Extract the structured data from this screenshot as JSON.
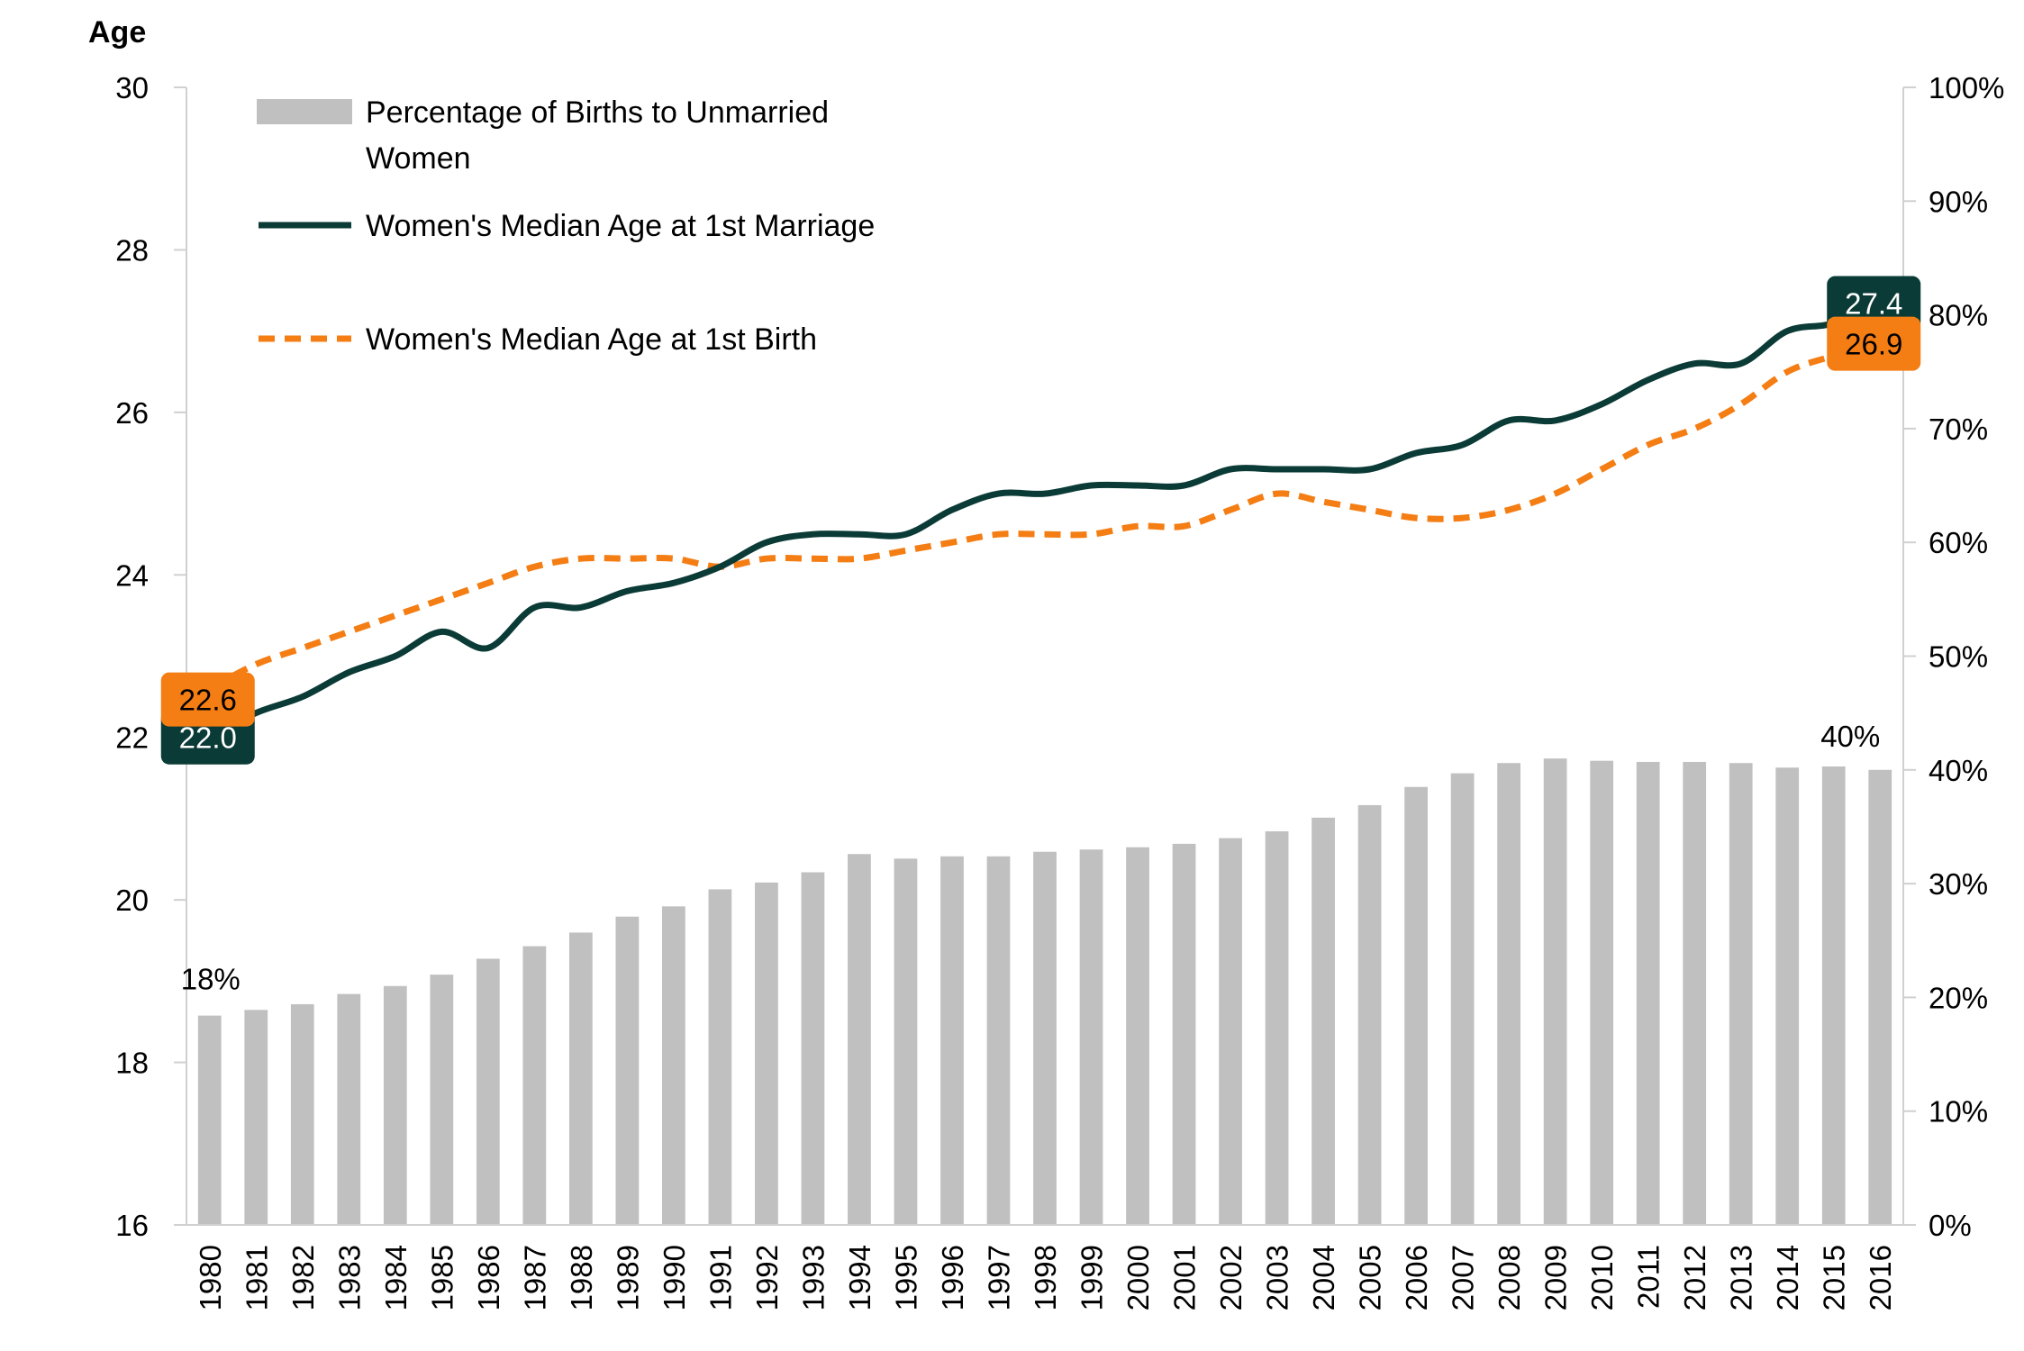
{
  "chart_data": {
    "type": "bar",
    "y_axis_title": "Age",
    "y_left_range": [
      16,
      30
    ],
    "y_left_ticks": [
      "16",
      "18",
      "20",
      "22",
      "24",
      "26",
      "28",
      "30"
    ],
    "y_right_range": [
      0,
      100
    ],
    "y_right_ticks": [
      "0%",
      "10%",
      "20%",
      "30%",
      "40%",
      "50%",
      "60%",
      "70%",
      "80%",
      "90%",
      "100%"
    ],
    "categories": [
      "1980",
      "1981",
      "1982",
      "1983",
      "1984",
      "1985",
      "1986",
      "1987",
      "1988",
      "1989",
      "1990",
      "1991",
      "1992",
      "1993",
      "1994",
      "1995",
      "1996",
      "1997",
      "1998",
      "1999",
      "2000",
      "2001",
      "2002",
      "2003",
      "2004",
      "2005",
      "2006",
      "2007",
      "2008",
      "2009",
      "2010",
      "2011",
      "2012",
      "2013",
      "2014",
      "2015",
      "2016"
    ],
    "series": [
      {
        "name": "Percentage of Births to Unmarried Women",
        "type": "bar",
        "axis": "right",
        "color": "#c0c0c0",
        "values": [
          18.4,
          18.9,
          19.4,
          20.3,
          21.0,
          22.0,
          23.4,
          24.5,
          25.7,
          27.1,
          28.0,
          29.5,
          30.1,
          31.0,
          32.6,
          32.2,
          32.4,
          32.4,
          32.8,
          33.0,
          33.2,
          33.5,
          34.0,
          34.6,
          35.8,
          36.9,
          38.5,
          39.7,
          40.6,
          41.0,
          40.8,
          40.7,
          40.7,
          40.6,
          40.2,
          40.3,
          40.0
        ],
        "data_labels": [
          "18%",
          "40%"
        ]
      },
      {
        "name": "Women's Median Age at 1st Marriage",
        "type": "line",
        "axis": "left",
        "color": "#0b3b36",
        "values": [
          22.0,
          22.3,
          22.5,
          22.8,
          23.0,
          23.3,
          23.1,
          23.6,
          23.6,
          23.8,
          23.9,
          24.1,
          24.4,
          24.5,
          24.5,
          24.5,
          24.8,
          25.0,
          25.0,
          25.1,
          25.1,
          25.1,
          25.3,
          25.3,
          25.3,
          25.3,
          25.5,
          25.6,
          25.9,
          25.9,
          26.1,
          26.4,
          26.6,
          26.6,
          27.0,
          27.1,
          27.4
        ],
        "data_labels": [
          "22.0",
          "27.4"
        ]
      },
      {
        "name": "Women's Median Age at 1st Birth",
        "type": "line",
        "axis": "left",
        "color": "#f47d14",
        "values": [
          22.6,
          22.9,
          23.1,
          23.3,
          23.5,
          23.7,
          23.9,
          24.1,
          24.2,
          24.2,
          24.2,
          24.1,
          24.2,
          24.2,
          24.2,
          24.3,
          24.4,
          24.5,
          24.5,
          24.5,
          24.6,
          24.6,
          24.8,
          25.0,
          24.9,
          24.8,
          24.7,
          24.7,
          24.8,
          25.0,
          25.3,
          25.6,
          25.8,
          26.1,
          26.5,
          26.7,
          26.9
        ],
        "data_labels": [
          "22.6",
          "26.9"
        ]
      }
    ],
    "legend_position": "top-left",
    "grid": false
  }
}
